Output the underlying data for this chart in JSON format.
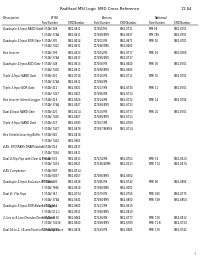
{
  "title": "RadHard MSI Logic SMD Cross Reference",
  "page": "1/2-84",
  "background_color": "#ffffff",
  "rows": [
    {
      "desc": "Quadruple 2-Input NAND Gate",
      "data": [
        [
          "F 374A/ 388",
          "5962-8611",
          "DL7400/MS",
          "5962-0711",
          "MM 88",
          "5962-8701"
        ],
        [
          "F 374A/ 374A",
          "5962-8611",
          "DL7488/8MS",
          "5962-8637",
          "MM 74H",
          "5962-8701"
        ]
      ]
    },
    {
      "desc": "Quadruple 2-Input NOR Gate",
      "data": [
        [
          "F 374A/ 392",
          "5962-8614",
          "DL7402/MS",
          "5962-8671",
          "MM/ 92",
          "5962-8701"
        ],
        [
          "F 374A/ 7402",
          "5962-8611",
          "DL7488/0MS",
          "5962-8600",
          "",
          ""
        ]
      ]
    },
    {
      "desc": "Hex Inverter",
      "data": [
        [
          "F 374A/ 394",
          "5962-8613",
          "DL7404/MS",
          "5962-8717",
          "MM/ 94",
          "5962-8768"
        ],
        [
          "F 374A/ 374A",
          "5962-8617",
          "DL7488/4MS",
          "5962-8717",
          "",
          ""
        ]
      ]
    },
    {
      "desc": "Quadruple 2-Input AND Gate",
      "data": [
        [
          "F 374A/ 348",
          "5962-8613",
          "DL7408/MS",
          "5962-8640",
          "MM/ 08",
          "5962-8701"
        ],
        [
          "F 374A/ 7408",
          "5962-8611",
          "DL7488/8MS",
          "5962-8600",
          "",
          ""
        ]
      ]
    },
    {
      "desc": "Triple 3-Input NAND Gate",
      "data": [
        [
          "F 374A/ 410",
          "5962-8718",
          "DL7410/MS",
          "5962-8711",
          "MM/ 10",
          "5962-8701"
        ],
        [
          "F 374A/ 374A",
          "5962-8611",
          "DL7488/MS",
          "",
          "",
          ""
        ]
      ]
    },
    {
      "desc": "Triple 3-Input NOR Gate",
      "data": [
        [
          "F 374A/ 411",
          "5962-8921",
          "DL7427/MS",
          "5962-8730",
          "MM/ 11",
          "5962-8701"
        ],
        [
          "F 374A/ 7427",
          "5962-8921",
          "DL7488/MS",
          "5962-8713",
          "",
          ""
        ]
      ]
    },
    {
      "desc": "Hex Inverter Schmitt-trigger",
      "data": [
        [
          "F 374A/ 414",
          "5962-8924",
          "DL7414/MS",
          "5962-8732",
          "MM/ 14",
          "5962-8706"
        ],
        [
          "F 374A/ 374A",
          "5962-8927",
          "DL7488/4MS",
          "5962-8733",
          "",
          ""
        ]
      ]
    },
    {
      "desc": "Dual 4-Input NAND Gate",
      "data": [
        [
          "F 374A/ 420",
          "5962-8214",
          "DL7420/MS",
          "5962-8773",
          "MM/ 20",
          "5962-8701"
        ],
        [
          "F 374A/ 7420",
          "5962-8927",
          "DL7488/8MS",
          "5962-8713",
          "",
          ""
        ]
      ]
    },
    {
      "desc": "Triple 3-Input NAND Gate",
      "data": [
        [
          "F 374A/ 427",
          "5962-8385",
          "DL7457/MS",
          "5962-8780",
          "",
          ""
        ],
        [
          "F 374A/ 7437",
          "5962-8478",
          "DL7487/868MS",
          "5962-8714",
          "",
          ""
        ]
      ]
    },
    {
      "desc": "Hex Schmitt-Inverting Buffer",
      "data": [
        [
          "F 374A/ 040",
          "5962-8418",
          "",
          "",
          "",
          ""
        ],
        [
          "F 374A/ 7404",
          "5962-8981",
          "",
          "",
          "",
          ""
        ]
      ]
    },
    {
      "desc": "4-Bit, FIFO/RAM+DRAM latches",
      "data": [
        [
          "F 374A/ 014",
          "5962-8917",
          "",
          "",
          "",
          ""
        ],
        [
          "F 374A/ 7034",
          "5962-8811",
          "",
          "",
          "",
          ""
        ]
      ]
    },
    {
      "desc": "Dual D-Flip-Flop with Clear & Preset",
      "data": [
        [
          "F 374A/ 078",
          "5962-8613",
          "DL7474/MS",
          "5962-8752",
          "MM/ 74",
          "5962-8524"
        ],
        [
          "F 374A/ 7474",
          "5962-8621",
          "DL7448/48MS",
          "5962-8513",
          "MM/ 174",
          "5962-8574"
        ]
      ]
    },
    {
      "desc": "4-Bit Comparator",
      "data": [
        [
          "F 374A/ 887",
          "5962-8514",
          "",
          "",
          "",
          ""
        ],
        [
          "F 374A/ 8037",
          "5962-8057",
          "DL7488/8MS",
          "5962-8504",
          "",
          ""
        ]
      ]
    },
    {
      "desc": "Quadruple 2-Input Exclusive-OR Gates",
      "data": [
        [
          "F 374A/ 286",
          "5962-8618",
          "DL7486/MS",
          "5962-8742",
          "MM/ 86",
          "5962-8806"
        ],
        [
          "F 374A/ 7686",
          "5962-8619",
          "DL7488/6MS",
          "5962-8000",
          "",
          ""
        ]
      ]
    },
    {
      "desc": "Dual 4t- Flip-flops",
      "data": [
        [
          "F 374A/ 367",
          "5962-8734",
          "DL7479/MS",
          "5962-8756",
          "MM/ 180",
          "5962-8775"
        ],
        [
          "F 374A/ 374A",
          "5962-8541",
          "DL7488/8MS",
          "5962-8800",
          "MM/ 74H",
          "5962-8854"
        ]
      ]
    },
    {
      "desc": "Quadruple 3-Input NOR Balance Triggers",
      "data": [
        [
          "F 374A/ 511",
          "5962-8600",
          "DL7413/MS",
          "5962-8610",
          "",
          ""
        ],
        [
          "F 374A/ 512-1",
          "5962-8611",
          "DL7488/8MS",
          "5962-8810",
          "",
          ""
        ]
      ]
    },
    {
      "desc": "3-Line to 8-Line Decoder/Demultiplexer",
      "data": [
        [
          "F 374A/ 8138",
          "5962-8064",
          "DL7438/MS",
          "5962-8777",
          "MM/ 138",
          "5962-8532"
        ],
        [
          "F 374A/ 74138",
          "5962-8640",
          "DL7488/8MS",
          "5962-8789",
          "MM/ 71 B",
          "5962-8734"
        ]
      ]
    },
    {
      "desc": "Dual 16-to-1, 16-and-Function Demultiplexers",
      "data": [
        [
          "F 374A/ 8139",
          "5962-8616",
          "DL7439/MS",
          "5962-8985",
          "MM/ 139",
          "5962-8742"
        ]
      ]
    }
  ]
}
